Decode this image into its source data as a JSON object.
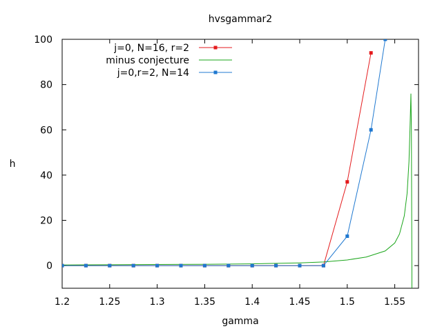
{
  "chart_data": {
    "type": "line",
    "title": "hvsgammar2",
    "xlabel": "gamma",
    "ylabel": "h",
    "xlim": [
      1.2,
      1.575
    ],
    "ylim": [
      -10,
      100
    ],
    "xticks": [
      "1.2",
      "1.25",
      "1.3",
      "1.35",
      "1.4",
      "1.45",
      "1.5",
      "1.55"
    ],
    "xtick_values": [
      1.2,
      1.25,
      1.3,
      1.35,
      1.4,
      1.45,
      1.5,
      1.55
    ],
    "yticks": [
      "0",
      "20",
      "40",
      "60",
      "80",
      "100"
    ],
    "ytick_values": [
      0,
      20,
      40,
      60,
      80,
      100
    ],
    "grid": false,
    "legend_position": "top-left",
    "series": [
      {
        "name": "j=0, N=16, r=2",
        "color": "#e41a1c",
        "marker": "square",
        "x": [
          1.2,
          1.225,
          1.25,
          1.275,
          1.3,
          1.325,
          1.35,
          1.375,
          1.4,
          1.425,
          1.45,
          1.475,
          1.5,
          1.525
        ],
        "y": [
          0,
          0,
          0,
          0,
          0,
          0,
          0,
          0,
          0,
          0,
          0,
          0,
          37,
          94
        ]
      },
      {
        "name": "minus conjecture",
        "color": "#1aa51a",
        "marker": "none",
        "x": [
          1.2,
          1.25,
          1.3,
          1.35,
          1.4,
          1.45,
          1.475,
          1.5,
          1.52,
          1.54,
          1.55,
          1.555,
          1.56,
          1.563,
          1.565,
          1.566,
          1.567,
          1.5675,
          1.568,
          1.568,
          1.568
        ],
        "y": [
          0.3,
          0.4,
          0.5,
          0.6,
          0.8,
          1.2,
          1.6,
          2.5,
          3.8,
          6.5,
          10,
          14,
          22,
          32,
          46,
          60,
          76,
          60,
          -2,
          -10,
          0
        ]
      },
      {
        "name": "j=0,r=2, N=14",
        "color": "#1f78d0",
        "marker": "square",
        "x": [
          1.2,
          1.225,
          1.25,
          1.275,
          1.3,
          1.325,
          1.35,
          1.375,
          1.4,
          1.425,
          1.45,
          1.475,
          1.5,
          1.525,
          1.54
        ],
        "y": [
          0,
          0,
          0,
          0,
          0,
          0,
          0,
          0,
          0,
          0,
          0,
          0,
          13,
          60,
          100
        ]
      }
    ]
  }
}
